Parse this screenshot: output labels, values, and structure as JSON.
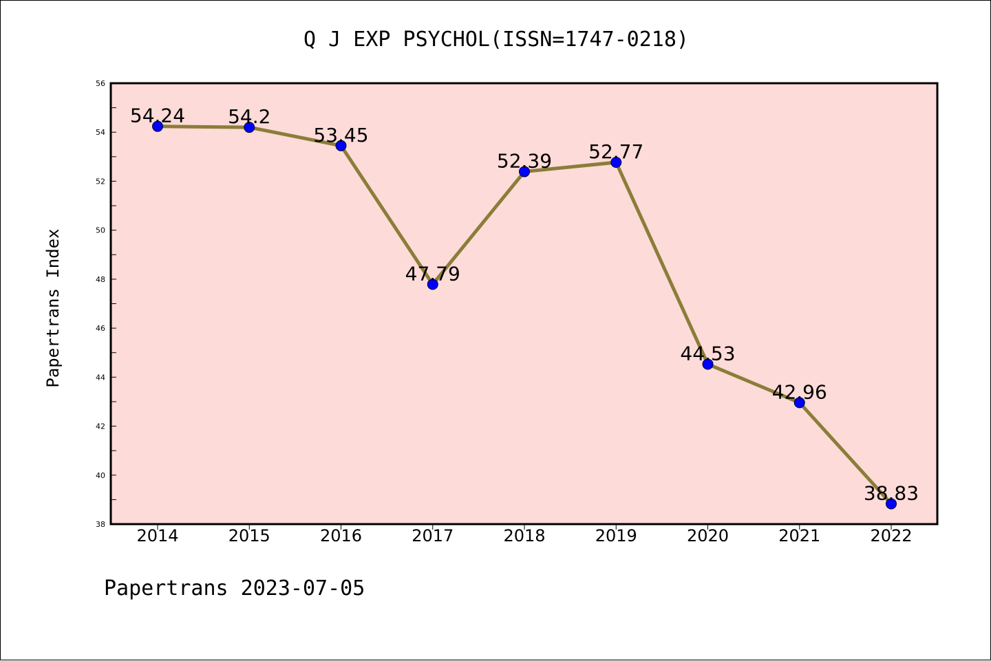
{
  "footer": "Papertrans 2023-07-05",
  "chart_data": {
    "type": "line",
    "title": "Q J EXP PSYCHOL(ISSN=1747-0218)",
    "ylabel": "Papertrans Index",
    "xlabel": "",
    "categories": [
      "2014",
      "2015",
      "2016",
      "2017",
      "2018",
      "2019",
      "2020",
      "2021",
      "2022"
    ],
    "series": [
      {
        "values": [
          54.24,
          54.2,
          53.45,
          47.79,
          52.39,
          52.77,
          44.53,
          42.96,
          38.83
        ],
        "labels": [
          "54.24",
          "54.2",
          "53.45",
          "47.79",
          "52.39",
          "52.77",
          "44.53",
          "42.96",
          "38.83"
        ]
      }
    ],
    "ylim": [
      38,
      56
    ],
    "yticks": [
      "38",
      "40",
      "42",
      "44",
      "46",
      "48",
      "50",
      "52",
      "54",
      "56"
    ],
    "grid": false,
    "legend": "none",
    "colors": {
      "plot_background": "#fddbd8",
      "line": "#8b7d3a",
      "marker": "#0000ff"
    }
  }
}
